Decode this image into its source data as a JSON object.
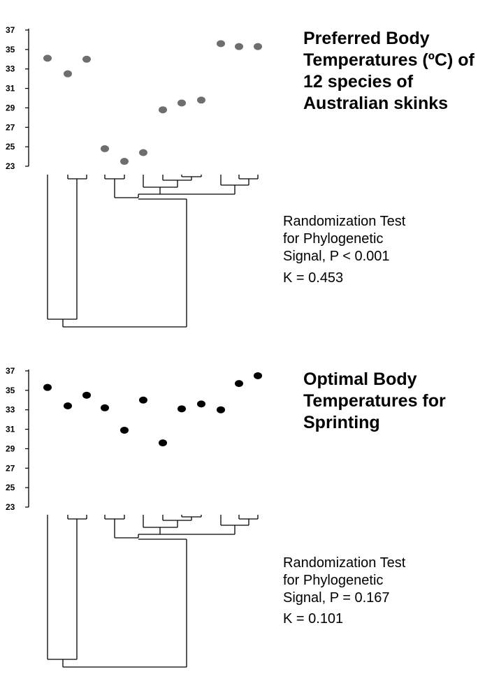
{
  "chart_data": [
    {
      "type": "scatter",
      "title": "Preferred Body Temperatures (ºC) of 12 species of Australian skinks",
      "ylim": [
        23,
        37
      ],
      "yticks": [
        "37",
        "35",
        "33",
        "31",
        "29",
        "27",
        "25",
        "23"
      ],
      "point_color": "#6e6e6e",
      "series": [
        {
          "values": [
            34.1,
            32.5,
            34.0,
            24.8,
            23.5,
            24.4,
            28.8,
            29.5,
            29.8,
            35.6,
            35.3,
            35.3
          ]
        }
      ],
      "statistics": {
        "test": "Randomization Test\nfor Phylogenetic\nSignal, P < 0.001",
        "k": "K = 0.453"
      }
    },
    {
      "type": "scatter",
      "title": "Optimal Body Temperatures for Sprinting",
      "ylim": [
        23,
        37
      ],
      "yticks": [
        "37",
        "35",
        "33",
        "31",
        "29",
        "27",
        "25",
        "23"
      ],
      "point_color": "#000000",
      "series": [
        {
          "values": [
            35.3,
            33.4,
            34.5,
            33.2,
            30.9,
            34.0,
            29.6,
            33.1,
            33.6,
            33.0,
            35.7,
            36.5
          ]
        }
      ],
      "statistics": {
        "test": "Randomization Test\nfor Phylogenetic\nSignal, P = 0.167",
        "k": "K = 0.101"
      }
    }
  ]
}
